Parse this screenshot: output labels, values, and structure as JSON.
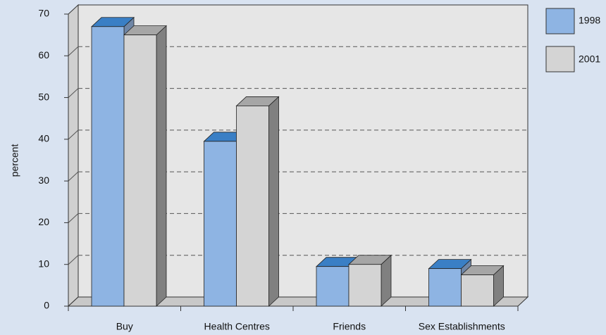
{
  "chart_data": {
    "type": "bar3d",
    "y_label": "percent",
    "categories": [
      "Buy",
      "Health Centres",
      "Friends",
      "Sex Establishments"
    ],
    "series": [
      {
        "name": "1998",
        "color": "#8eb4e3",
        "values": [
          67,
          39.5,
          9.5,
          9
        ]
      },
      {
        "name": "2001",
        "color": "#d4d4d4",
        "values": [
          65,
          48,
          10,
          7.5
        ]
      }
    ],
    "ylim": [
      0,
      70
    ],
    "yticks": [
      0,
      10,
      20,
      30,
      40,
      50,
      60,
      70
    ],
    "grid": true,
    "legend": "right"
  }
}
